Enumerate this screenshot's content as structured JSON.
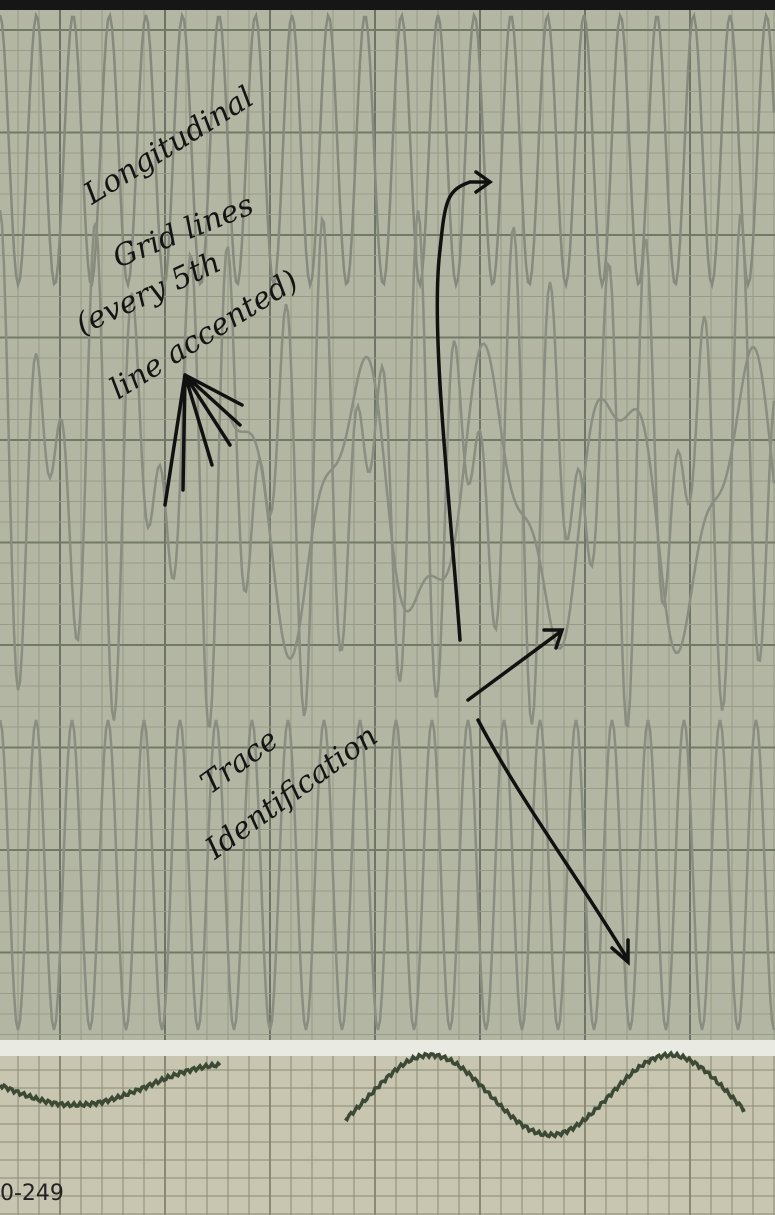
{
  "annotations": {
    "grid_note": [
      "Longitudinal",
      "Grid lines",
      "(every 5th",
      "line accented)"
    ],
    "trace_note": [
      "Trace",
      "Identification"
    ]
  },
  "paper_label": "0-249"
}
